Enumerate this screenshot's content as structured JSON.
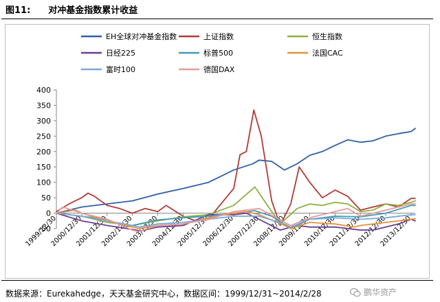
{
  "figure": {
    "number": "图11:",
    "title": "对冲基金指数累计收益",
    "source": "数据来源：Eurekahedge，天天基金研究中心，数据区间：1999/12/31~2014/2/28",
    "watermark": "鹏华资产"
  },
  "chart_data": {
    "type": "line",
    "title": "",
    "xlabel": "",
    "ylabel": "",
    "ylim": [
      -50,
      400
    ],
    "yticks": [
      -50,
      0,
      50,
      100,
      150,
      200,
      250,
      300,
      350,
      400
    ],
    "xlim": [
      "1999/12/31",
      "2014/02/28"
    ],
    "xticks": [
      "1999/12/30",
      "2000/12/30",
      "2001/12/30",
      "2002/12/30",
      "2003/12/30",
      "2004/12/30",
      "2005/12/30",
      "2006/12/30",
      "2007/12/30",
      "2008/12/30",
      "2009/12/30",
      "2010/12/30",
      "2011/12/30",
      "2012/12/30",
      "2013/12/30"
    ],
    "grid": false,
    "legend_position": "top",
    "series": [
      {
        "name": "EH全球对冲基金指数",
        "color": "#2e5ea8",
        "x": [
          "1999/12/31",
          "2000/12/31",
          "2001/12/31",
          "2002/12/31",
          "2003/12/31",
          "2004/12/31",
          "2005/12/31",
          "2006/12/31",
          "2007/09/30",
          "2007/12/31",
          "2008/06/30",
          "2008/12/31",
          "2009/06/30",
          "2009/12/31",
          "2010/06/30",
          "2010/12/31",
          "2011/06/30",
          "2011/12/31",
          "2012/06/30",
          "2012/12/31",
          "2013/06/30",
          "2013/12/31",
          "2014/02/28"
        ],
        "values": [
          0,
          20,
          30,
          40,
          62,
          80,
          100,
          140,
          160,
          172,
          168,
          140,
          160,
          188,
          200,
          220,
          238,
          230,
          235,
          250,
          258,
          265,
          275
        ]
      },
      {
        "name": "上证指数",
        "color": "#b03a36",
        "x": [
          "1999/12/31",
          "2000/06/30",
          "2000/12/31",
          "2001/03/31",
          "2001/06/30",
          "2001/12/31",
          "2002/06/30",
          "2002/12/31",
          "2003/06/30",
          "2003/12/31",
          "2004/04/30",
          "2004/12/31",
          "2005/06/30",
          "2005/12/31",
          "2006/06/30",
          "2006/12/31",
          "2007/03/31",
          "2007/06/30",
          "2007/10/16",
          "2008/01/31",
          "2008/06/30",
          "2008/10/31",
          "2009/03/31",
          "2009/07/31",
          "2009/12/31",
          "2010/06/30",
          "2010/12/31",
          "2011/06/30",
          "2011/12/31",
          "2012/06/30",
          "2012/12/31",
          "2013/06/30",
          "2013/12/31",
          "2014/02/28"
        ],
        "values": [
          5,
          30,
          50,
          65,
          55,
          25,
          15,
          0,
          15,
          5,
          25,
          -10,
          -25,
          -20,
          30,
          80,
          190,
          200,
          335,
          250,
          40,
          -40,
          30,
          150,
          100,
          50,
          75,
          55,
          10,
          20,
          30,
          20,
          48,
          48
        ]
      },
      {
        "name": "恒生指数",
        "color": "#8cb042",
        "x": [
          "1999/12/31",
          "2000/12/31",
          "2001/12/31",
          "2002/12/31",
          "2003/12/31",
          "2004/12/31",
          "2005/12/31",
          "2006/12/31",
          "2007/10/31",
          "2008/03/31",
          "2008/10/31",
          "2009/06/30",
          "2009/12/31",
          "2010/06/30",
          "2010/12/31",
          "2011/06/30",
          "2011/12/31",
          "2012/06/30",
          "2012/12/31",
          "2013/06/30",
          "2013/12/31",
          "2014/02/28"
        ],
        "values": [
          0,
          -10,
          -30,
          -40,
          -25,
          -12,
          -5,
          25,
          85,
          35,
          -35,
          15,
          30,
          25,
          35,
          30,
          5,
          10,
          30,
          25,
          35,
          40
        ]
      },
      {
        "name": "日经225",
        "color": "#6a3d8f",
        "x": [
          "1999/12/31",
          "2000/12/31",
          "2001/12/31",
          "2002/12/31",
          "2003/04/30",
          "2003/12/31",
          "2004/12/31",
          "2005/12/31",
          "2006/12/31",
          "2007/06/30",
          "2007/12/31",
          "2008/10/31",
          "2009/06/30",
          "2009/12/31",
          "2010/12/31",
          "2011/12/31",
          "2012/06/30",
          "2012/12/31",
          "2013/06/30",
          "2013/12/31",
          "2014/02/28"
        ],
        "values": [
          0,
          -25,
          -40,
          -53,
          -58,
          -45,
          -40,
          -5,
          -5,
          0,
          -20,
          -55,
          -40,
          -45,
          -45,
          -55,
          -55,
          -45,
          -35,
          -20,
          -25
        ]
      },
      {
        "name": "标普500",
        "color": "#3f9ab5",
        "x": [
          "1999/12/31",
          "2000/12/31",
          "2001/12/31",
          "2002/09/30",
          "2002/12/31",
          "2003/12/31",
          "2004/12/31",
          "2005/12/31",
          "2006/12/31",
          "2007/10/31",
          "2008/06/30",
          "2009/03/31",
          "2009/12/31",
          "2010/12/31",
          "2011/12/31",
          "2012/12/31",
          "2013/12/31",
          "2014/02/28"
        ],
        "values": [
          0,
          -10,
          -20,
          -45,
          -40,
          -22,
          -15,
          -10,
          0,
          8,
          -10,
          -50,
          -20,
          -10,
          -12,
          0,
          25,
          25
        ]
      },
      {
        "name": "法国CAC",
        "color": "#e69138",
        "x": [
          "1999/12/31",
          "2000/09/30",
          "2000/12/31",
          "2001/12/31",
          "2002/12/31",
          "2003/03/31",
          "2003/12/31",
          "2004/12/31",
          "2005/12/31",
          "2006/12/31",
          "2007/06/30",
          "2007/12/31",
          "2008/12/31",
          "2009/03/31",
          "2009/12/31",
          "2010/12/31",
          "2011/09/30",
          "2011/12/31",
          "2012/12/31",
          "2013/12/31",
          "2014/02/28"
        ],
        "values": [
          0,
          10,
          0,
          -25,
          -45,
          -50,
          -40,
          -35,
          -15,
          0,
          5,
          -5,
          -40,
          -50,
          -30,
          -35,
          -45,
          -40,
          -30,
          -20,
          -18
        ]
      },
      {
        "name": "富时100",
        "color": "#79a8d9",
        "x": [
          "1999/12/31",
          "2000/12/31",
          "2001/12/31",
          "2002/12/31",
          "2003/03/31",
          "2003/12/31",
          "2004/12/31",
          "2005/12/31",
          "2006/12/31",
          "2007/12/31",
          "2008/12/31",
          "2009/03/31",
          "2009/12/31",
          "2010/12/31",
          "2011/12/31",
          "2012/12/31",
          "2013/12/31",
          "2014/02/28"
        ],
        "values": [
          0,
          -10,
          -25,
          -40,
          -45,
          -35,
          -30,
          -20,
          -10,
          -10,
          -35,
          -45,
          -20,
          -15,
          -20,
          -15,
          -5,
          -5
        ]
      },
      {
        "name": "德国DAX",
        "color": "#e89a9a",
        "x": [
          "1999/12/31",
          "2000/03/31",
          "2000/12/31",
          "2001/12/31",
          "2002/12/31",
          "2003/03/31",
          "2003/12/31",
          "2004/12/31",
          "2005/12/31",
          "2006/12/31",
          "2007/12/31",
          "2008/12/31",
          "2009/03/31",
          "2009/12/31",
          "2010/12/31",
          "2011/06/30",
          "2011/12/31",
          "2012/12/31",
          "2013/12/31",
          "2014/02/28"
        ],
        "values": [
          0,
          20,
          0,
          -20,
          -55,
          -60,
          -40,
          -35,
          -20,
          5,
          15,
          -30,
          -40,
          -15,
          5,
          15,
          -10,
          10,
          30,
          30
        ]
      }
    ]
  }
}
